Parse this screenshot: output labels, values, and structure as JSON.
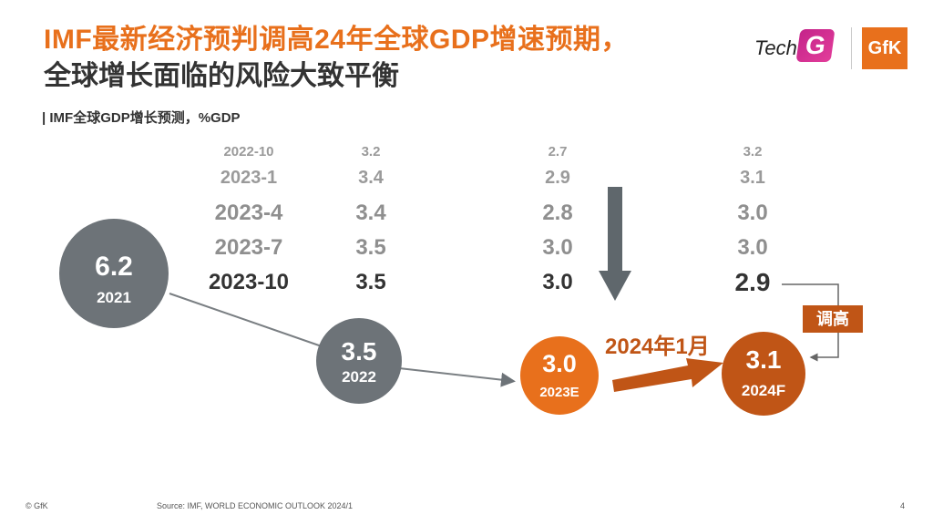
{
  "title": {
    "line1": "IMF最新经济预判调高24年全球GDP增速预期，",
    "line2": "全球增长面临的风险大致平衡"
  },
  "subtitle": "| IMF全球GDP增长预测，%GDP",
  "logos": {
    "tech": "Tech",
    "g": "G",
    "gfk": "GfK"
  },
  "chart_data": {
    "type": "table",
    "title": "IMF全球GDP增长预测，%GDP",
    "columns": [
      "2022",
      "2023",
      "2024"
    ],
    "forecast_vintages": [
      {
        "vintage": "2022-10",
        "values": [
          "3.2",
          "2.7",
          "3.2"
        ]
      },
      {
        "vintage": "2023-1",
        "values": [
          "3.4",
          "2.9",
          "3.1"
        ]
      },
      {
        "vintage": "2023-4",
        "values": [
          "3.4",
          "2.8",
          "3.0"
        ]
      },
      {
        "vintage": "2023-7",
        "values": [
          "3.5",
          "3.0",
          "3.0"
        ]
      },
      {
        "vintage": "2023-10",
        "values": [
          "3.5",
          "3.0",
          "2.9"
        ]
      }
    ],
    "bubbles": [
      {
        "value": "6.2",
        "label": "2021",
        "color": "#6d7378"
      },
      {
        "value": "3.5",
        "label": "2022",
        "color": "#6d7378"
      },
      {
        "value": "3.0",
        "label": "2023E",
        "color": "#e8701c"
      },
      {
        "value": "3.1",
        "label": "2024F",
        "color": "#c05516"
      }
    ],
    "annotation": "2024年1月",
    "badge": "调高"
  },
  "footer": {
    "copyright": "© GfK",
    "source": "Source: IMF, WORLD ECONOMIC OUTLOOK 2024/1",
    "page": "4"
  },
  "colors": {
    "accent": "#e8701c",
    "dark_accent": "#c05516",
    "grey_bubble": "#6d7378",
    "arrow": "#5f676c"
  }
}
